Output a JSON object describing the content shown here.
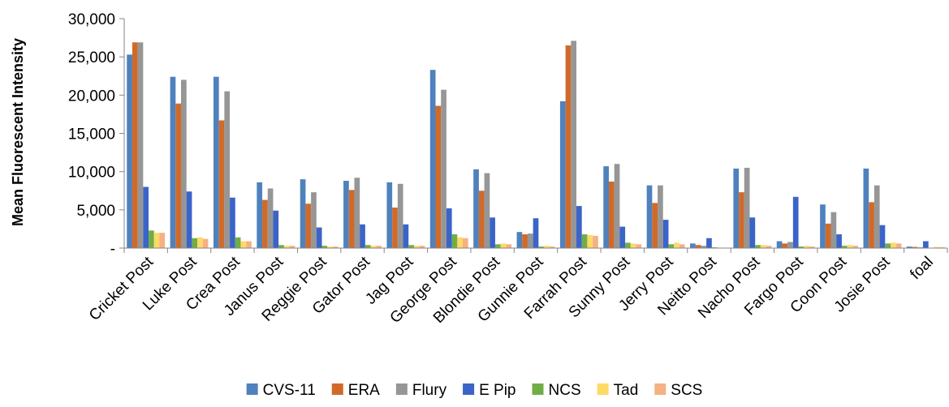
{
  "chart_data": {
    "type": "bar",
    "title": "",
    "xlabel": "",
    "ylabel": "Mean Fluorescent Intensity",
    "ylim": [
      0,
      30000
    ],
    "yticks": [
      0,
      5000,
      10000,
      15000,
      20000,
      25000,
      30000
    ],
    "ytick_labels": [
      "-",
      "5,000",
      "10,000",
      "15,000",
      "20,000",
      "25,000",
      "30,000"
    ],
    "grid": false,
    "legend_position": "bottom",
    "categories": [
      "Cricket Post",
      "Luke Post",
      "Crea Post",
      "Janus Post",
      "Reggie Post",
      "Gator Post",
      "Jag Post",
      "George Post",
      "Blondie Post",
      "Gunnie Post",
      "Farrah Post",
      "Sunny Post",
      "Jerry Post",
      "Neitto Post",
      "Nacho Post",
      "Fargo Post",
      "Coon Post",
      "Josie Post",
      "foal"
    ],
    "series": [
      {
        "name": "CVS-11",
        "color": "#4f81bd",
        "values": [
          25300,
          22400,
          22400,
          8600,
          9000,
          8800,
          8600,
          23300,
          10300,
          2100,
          19200,
          10700,
          8200,
          600,
          10400,
          900,
          5700,
          10400,
          200
        ]
      },
      {
        "name": "ERA",
        "color": "#d06a2a",
        "values": [
          26900,
          18900,
          16700,
          6300,
          5800,
          7600,
          5300,
          18600,
          7500,
          1800,
          26500,
          8700,
          5900,
          400,
          7300,
          600,
          3200,
          6000,
          150
        ]
      },
      {
        "name": "Flury",
        "color": "#969696",
        "values": [
          26900,
          22000,
          20500,
          7800,
          7300,
          9200,
          8400,
          20700,
          9800,
          1900,
          27100,
          11000,
          8200,
          300,
          10500,
          800,
          4700,
          8200,
          100
        ]
      },
      {
        "name": "E Pip",
        "color": "#3a64c8",
        "values": [
          8000,
          7400,
          6600,
          4900,
          2700,
          3100,
          3100,
          5200,
          4000,
          3900,
          5500,
          2800,
          3700,
          1300,
          4000,
          6700,
          1800,
          3000,
          900
        ]
      },
      {
        "name": "NCS",
        "color": "#70ad47",
        "values": [
          2300,
          1300,
          1400,
          400,
          300,
          400,
          400,
          1800,
          500,
          200,
          1800,
          700,
          500,
          100,
          400,
          200,
          300,
          600,
          50
        ]
      },
      {
        "name": "Tad",
        "color": "#ffd966",
        "values": [
          2000,
          1400,
          900,
          300,
          200,
          300,
          300,
          1400,
          600,
          300,
          1700,
          600,
          700,
          50,
          400,
          300,
          400,
          700,
          150
        ]
      },
      {
        "name": "SCS",
        "color": "#f4b183",
        "values": [
          2000,
          1200,
          900,
          300,
          200,
          300,
          300,
          1300,
          500,
          200,
          1600,
          500,
          500,
          50,
          300,
          200,
          300,
          600,
          100
        ]
      }
    ]
  }
}
